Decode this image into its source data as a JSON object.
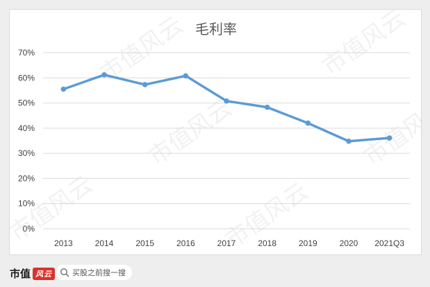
{
  "chart_data": {
    "type": "line",
    "title": "毛利率",
    "categories": [
      "2013",
      "2014",
      "2015",
      "2016",
      "2017",
      "2018",
      "2019",
      "2020",
      "2021Q3"
    ],
    "series": [
      {
        "name": "",
        "values": [
          55.5,
          61.2,
          57.3,
          60.8,
          50.8,
          48.3,
          42.0,
          34.8,
          36.1
        ],
        "color": "#5b9bd5"
      }
    ],
    "yticks": [
      "0%",
      "10%",
      "20%",
      "30%",
      "40%",
      "50%",
      "60%",
      "70%"
    ],
    "ylim": [
      0,
      70
    ],
    "grid": true,
    "legend": "none"
  },
  "watermark": "市值风云",
  "footer": {
    "brand_text": "市值",
    "brand_logo_text": "风云",
    "search_text": "买股之前搜一搜"
  }
}
